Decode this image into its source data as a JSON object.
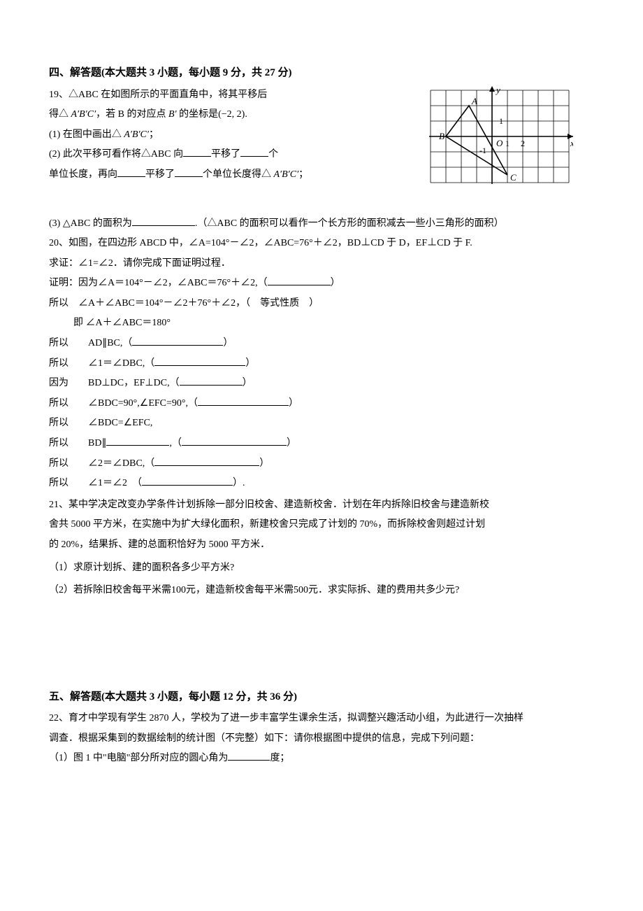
{
  "section4": {
    "header": "四、解答题(本大题共 3 小题，每小题 9 分，共 27 分)",
    "q19": {
      "number": "19、",
      "intro_l1": "△ABC 在如图所示的平面直角中，将其平移后",
      "intro_l2_pre": "得△ ",
      "intro_l2_prime": "A′B′C′",
      "intro_l2_mid": "，若 B 的对应点 ",
      "intro_l2_bprime": "B′",
      "intro_l2_post": " 的坐标是(−2, 2).",
      "part1_pre": "(1) 在图中画出△ ",
      "part1_prime": "A′B′C′",
      "part1_post": "；",
      "part2_pre": "(2) 此次平移可看作将△ABC 向",
      "part2_mid": "平移了",
      "part2_post": "个",
      "part2_l2_pre": "单位长度，再向",
      "part2_l2_mid": "平移了",
      "part2_l2_mid2": "个单位长度得△ ",
      "part2_l2_prime": "A′B′C′",
      "part2_l2_post": "；",
      "part3_pre": " (3) △ABC 的面积为",
      "part3_post": ".（△ABC 的面积可以看作一个长方形的面积减去一些小三角形的面积）"
    },
    "q20": {
      "l1": "20、如图，在四边形 ABCD 中，∠A=104°－∠2，∠ABC=76°＋∠2，BD⊥CD 于 D，EF⊥CD 于 F.",
      "l2": "求证：∠1=∠2．请你完成下面证明过程．",
      "l3": "证明：因为∠A＝104°－∠2，∠ABC＝76°＋∠2,（",
      "l3_post": "）",
      "l4": "所以　∠A＋∠ABC＝104°－∠2＋76°＋∠2，（　等式性质　）",
      "l5": "即 ∠A＋∠ABC＝180°",
      "l6_pre": "所以　　AD∥BC,（",
      "l6_post": "）",
      "l7_pre": "所以　　∠1＝∠DBC,（",
      "l7_post": "）",
      "l8_pre": "因为　　BD⊥DC，EF⊥DC,（",
      "l8_post": "）",
      "l9_pre": "所以　　∠BDC=90°,∠EFC=90°,（",
      "l9_post": "）",
      "l10": "所以　　∠BDC=∠EFC,",
      "l11_pre": "所以　　BD∥",
      "l11_mid": ",（",
      "l11_post": "）",
      "l12_pre": "所以　　∠2＝∠DBC,（",
      "l12_post": "）",
      "l13_pre": "所以　　∠1＝∠2　（",
      "l13_post": "）."
    },
    "q21": {
      "l1": "21、某中学决定改变办学条件计划拆除一部分旧校舍、建造新校舍．计划在年内拆除旧校舍与建造新校",
      "l2": "舍共 5000 平方米，在实施中为扩大绿化面积，新建校舍只完成了计划的 70%，而拆除校舍则超过计划",
      "l3": "的 20%，结果拆、建的总面积恰好为 5000 平方米．",
      "p1": "（1）求原计划拆、建的面积各多少平方米?",
      "p2": "（2）若拆除旧校舍每平米需100元，建造新校舍每平米需500元．求实际拆、建的费用共多少元?"
    }
  },
  "section5": {
    "header": "五、解答题(本大题共 3 小题，每小题 12 分，共 36 分)",
    "q22": {
      "l1": "22、育才中学现有学生 2870 人，学校为了进一步丰富学生课余生活，拟调整兴趣活动小组，为此进行一次抽样",
      "l2": "调查．根据采集到的数据绘制的统计图（不完整）如下：请你根据图中提供的信息，完成下列问题：",
      "p1_pre": "（1）图 1 中\"电脑\"部分所对应的圆心角为",
      "p1_post": "度；"
    }
  },
  "figure": {
    "grid_cols": 9,
    "grid_rows": 6,
    "cell_size": 22,
    "origin_col": 4,
    "origin_row": 3,
    "origin_label": "O",
    "x_label": "x",
    "y_label": "y",
    "x_tick_labels": [
      "1",
      "2"
    ],
    "x_tick_positions": [
      5,
      6
    ],
    "y_tick_label": "1",
    "y_tick_position": 2,
    "neg_tick_label": "-1",
    "point_A": {
      "col": 2.5,
      "row": 1,
      "label": "A"
    },
    "point_B": {
      "col": 1,
      "row": 3,
      "label": "B"
    },
    "point_C": {
      "col": 5,
      "row": 5.5,
      "label": "C"
    },
    "stroke_color": "#000000",
    "grid_color": "#000000",
    "background": "#ffffff"
  }
}
